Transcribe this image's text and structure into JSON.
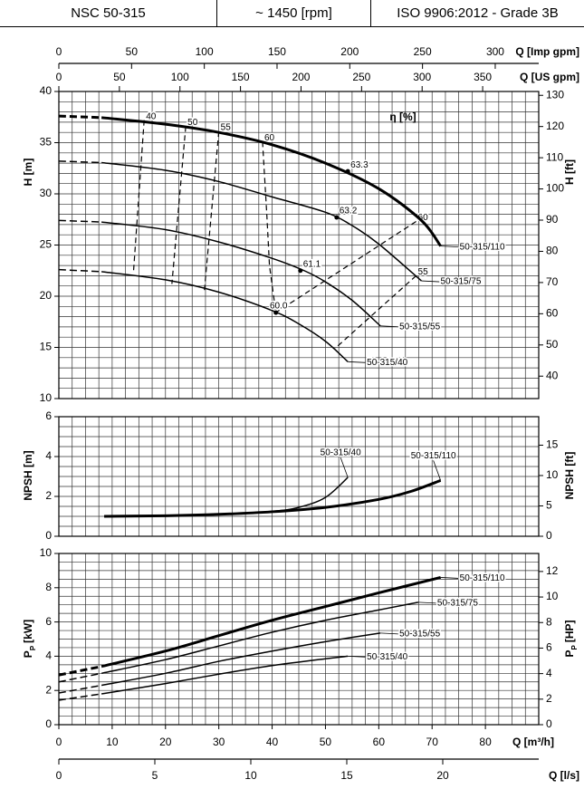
{
  "header": [
    "NSC 50-315",
    "~ 1450 [rpm]",
    "ISO 9906:2012 - Grade 3B"
  ],
  "x_axes": [
    {
      "label": "Q [Imp gpm]",
      "xlim": [
        0,
        329.9
      ],
      "xticks": [
        0,
        50,
        100,
        150,
        200,
        250,
        300
      ]
    },
    {
      "label": "Q [US gpm]",
      "xlim": [
        0,
        396.3
      ],
      "xticks": [
        0,
        50,
        100,
        150,
        200,
        250,
        300,
        350
      ]
    },
    {
      "label": "Q [l/s]",
      "xlim": [
        0,
        25
      ],
      "xticks": [
        0,
        5,
        10,
        15,
        20
      ]
    }
  ],
  "chart_data": [
    {
      "type": "line",
      "ylabel": "H [m]",
      "y2label": "H [ft]",
      "eta_label": "η [%]",
      "xlim": [
        0,
        90
      ],
      "ylim": [
        10,
        40
      ],
      "yticks": [
        10,
        15,
        20,
        25,
        30,
        35,
        40
      ],
      "y2lim": [
        32.81,
        131.23
      ],
      "y2ticks": [
        40,
        50,
        60,
        70,
        80,
        90,
        100,
        110,
        120,
        130
      ],
      "grid_minor_x": 2.5,
      "grid_minor_y": 1,
      "dashed_first_segment": true,
      "label_position": "right",
      "series": [
        {
          "name": "50-315/110",
          "color": "#000",
          "width": 3,
          "x": [
            0,
            8,
            20,
            30,
            40,
            50,
            60,
            68,
            71.6
          ],
          "values": [
            37.6,
            37.45,
            36.8,
            36,
            34.8,
            33,
            30.5,
            27.4,
            24.9
          ],
          "bep": {
            "x": 54.2,
            "y": 32.2,
            "value": 63.3
          }
        },
        {
          "name": "50-315/75",
          "color": "#000",
          "width": 1.5,
          "x": [
            0,
            8,
            20,
            30,
            40,
            50,
            55,
            60,
            68
          ],
          "values": [
            33.2,
            33.05,
            32.3,
            31.2,
            29.7,
            28.2,
            26.9,
            25.1,
            21.5
          ],
          "bep": {
            "x": 52.1,
            "y": 27.7,
            "value": 63.2
          }
        },
        {
          "name": "50-315/55",
          "color": "#000",
          "width": 1.5,
          "x": [
            0,
            8,
            20,
            30,
            40,
            46,
            50,
            55,
            60.3
          ],
          "values": [
            27.4,
            27.25,
            26.5,
            25.3,
            23.7,
            22.5,
            21.4,
            19.6,
            17.1
          ],
          "bep": {
            "x": 45.3,
            "y": 22.5,
            "value": 61.1
          }
        },
        {
          "name": "50-315/40",
          "color": "#000",
          "width": 1.5,
          "x": [
            0,
            8,
            20,
            30,
            40,
            45,
            50,
            54.2
          ],
          "values": [
            22.6,
            22.4,
            21.6,
            20.4,
            18.6,
            17.3,
            15.6,
            13.6
          ],
          "bep": {
            "x": 40.7,
            "y": 18.4,
            "value": 60,
            "label": "60.0"
          }
        }
      ],
      "efficiency_lines": [
        {
          "value": 40,
          "x": [
            16,
            14
          ],
          "y": [
            37.2,
            22.4
          ]
        },
        {
          "value": 50,
          "x": [
            23.8,
            21.2
          ],
          "y": [
            36.6,
            21.2
          ]
        },
        {
          "value": 55,
          "x": [
            30,
            27.3
          ],
          "y": [
            36.1,
            20.6
          ]
        },
        {
          "value": 60,
          "x": [
            38.2,
            39,
            39.5,
            40.7
          ],
          "y": [
            35.1,
            28,
            23,
            18.4
          ]
        },
        {
          "value": 60,
          "x": [
            67,
            40.7
          ],
          "y": [
            27.3,
            18.4
          ]
        },
        {
          "value": 55,
          "x": [
            67,
            51.8
          ],
          "y": [
            22,
            14.9
          ]
        }
      ]
    },
    {
      "type": "line",
      "ylabel": "NPSH [m]",
      "y2label": "NPSH [ft]",
      "xlim": [
        0,
        90
      ],
      "ylim": [
        0,
        6
      ],
      "yticks": [
        0,
        2,
        4,
        6
      ],
      "y2lim": [
        0,
        19.69
      ],
      "y2ticks": [
        0,
        5,
        10,
        15
      ],
      "grid_minor_x": 2.5,
      "grid_minor_y": 0.5,
      "dashed_first_segment": false,
      "label_position": "above",
      "series": [
        {
          "name": "50-315/40",
          "color": "#000",
          "width": 1.5,
          "x": [
            8.5,
            20,
            30,
            40,
            45,
            50,
            54.2
          ],
          "values": [
            1.0,
            1.03,
            1.1,
            1.25,
            1.45,
            1.95,
            2.95
          ]
        },
        {
          "name": "50-315/110",
          "color": "#000",
          "width": 3,
          "x": [
            8.5,
            20,
            30,
            40,
            50,
            60,
            66,
            71.6
          ],
          "values": [
            1.0,
            1.03,
            1.1,
            1.23,
            1.45,
            1.85,
            2.25,
            2.8
          ]
        }
      ]
    },
    {
      "type": "line",
      "ylabel": [
        "P",
        "P",
        "[kW]"
      ],
      "y2label": [
        "P",
        "P",
        "[HP]"
      ],
      "xlabel": "Q [m³/h]",
      "xlim": [
        0,
        90
      ],
      "xticks": [
        0,
        10,
        20,
        30,
        40,
        50,
        60,
        70,
        80
      ],
      "ylim": [
        0,
        10
      ],
      "yticks": [
        0,
        2,
        4,
        6,
        8,
        10
      ],
      "y2lim": [
        0,
        13.41
      ],
      "y2ticks": [
        0,
        2,
        4,
        6,
        8,
        10,
        12
      ],
      "grid_minor_x": 2.5,
      "grid_minor_y": 0.5,
      "dashed_first_segment": true,
      "label_position": "right",
      "series": [
        {
          "name": "50-315/110",
          "color": "#000",
          "width": 3,
          "x": [
            0,
            8,
            20,
            30,
            40,
            50,
            60,
            71.6
          ],
          "values": [
            2.9,
            3.4,
            4.3,
            5.2,
            6.1,
            6.9,
            7.7,
            8.6
          ]
        },
        {
          "name": "50-315/75",
          "color": "#000",
          "width": 1.5,
          "x": [
            0,
            8,
            20,
            30,
            40,
            50,
            60,
            67.4
          ],
          "values": [
            2.5,
            3.0,
            3.8,
            4.6,
            5.4,
            6.1,
            6.7,
            7.15
          ]
        },
        {
          "name": "50-315/55",
          "color": "#000",
          "width": 1.5,
          "x": [
            0,
            8,
            20,
            30,
            40,
            50,
            60.3
          ],
          "values": [
            1.85,
            2.3,
            3.0,
            3.7,
            4.3,
            4.85,
            5.35
          ]
        },
        {
          "name": "50-315/40",
          "color": "#000",
          "width": 1.5,
          "x": [
            0,
            8,
            20,
            30,
            40,
            50,
            54.2
          ],
          "values": [
            1.43,
            1.8,
            2.4,
            2.95,
            3.45,
            3.85,
            4.0
          ]
        }
      ]
    }
  ]
}
